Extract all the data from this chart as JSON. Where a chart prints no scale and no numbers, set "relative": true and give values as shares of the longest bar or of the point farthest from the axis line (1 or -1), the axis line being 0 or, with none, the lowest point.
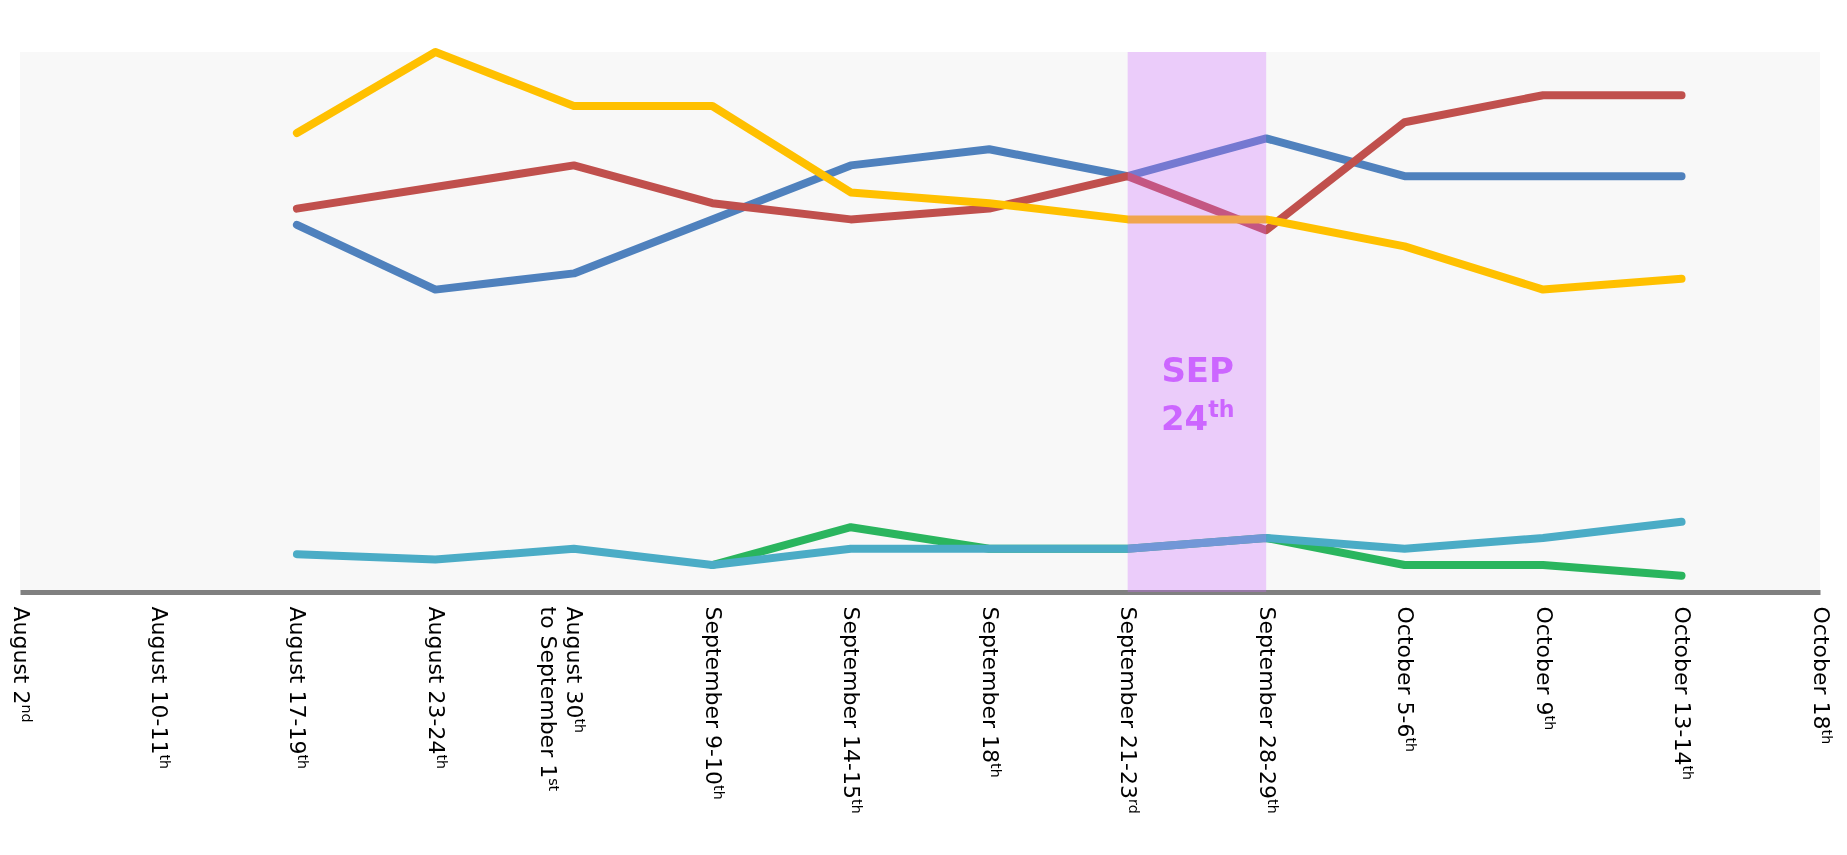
{
  "chart_data": {
    "type": "line",
    "relative": true,
    "categories": [
      "August 2$^{nd}$",
      "August 10-11$^{th}$",
      "August 17-19$^{th}$",
      "August 23-24$^{th}$",
      "August 30$^{th}$\nto September 1$^{st}$",
      "September 9-10$^{th}$",
      "September 14-15$^{th}$",
      "September 18$^{th}$",
      "September 21-23$^{rd}$",
      "September 28-29$^{th}$",
      "October 5-6$^{th}$",
      "October 9$^{th}$",
      "October 13-14$^{th}$",
      "October 18$^{th}$"
    ],
    "series": [
      {
        "color": "#4f81bd",
        "values": [
          null,
          null,
          0.68,
          0.56,
          0.59,
          0.69,
          0.79,
          0.82,
          0.77,
          0.84,
          0.77,
          0.77,
          0.77,
          null
        ]
      },
      {
        "color": "#c0504d",
        "values": [
          null,
          null,
          0.71,
          0.75,
          0.79,
          0.72,
          0.69,
          0.71,
          0.77,
          0.67,
          0.87,
          0.92,
          0.92,
          null
        ]
      },
      {
        "color": "#ffc000",
        "values": [
          null,
          null,
          0.85,
          1,
          0.9,
          0.9,
          0.74,
          0.72,
          0.69,
          0.69,
          0.64,
          0.56,
          0.58,
          null
        ]
      },
      {
        "color": "#2ab55e",
        "values": [
          null,
          null,
          null,
          null,
          null,
          0.05,
          0.12,
          0.08,
          0.08,
          0.1,
          0.05,
          0.05,
          0.03,
          null
        ]
      },
      {
        "color": "#4bacc6",
        "values": [
          null,
          null,
          0.07,
          0.06,
          0.08,
          0.05,
          0.08,
          0.08,
          0.08,
          0.1,
          0.08,
          0.1,
          0.13,
          null
        ]
      }
    ],
    "bands": [
      {
        "axis": "x",
        "from": "September 21-23$^{rd}$",
        "to": "September 28-29$^{th}$",
        "label": "SEP\n24$^{th}$",
        "color": "#cc66ff"
      }
    ],
    "grid": false,
    "line_style": "solid"
  }
}
